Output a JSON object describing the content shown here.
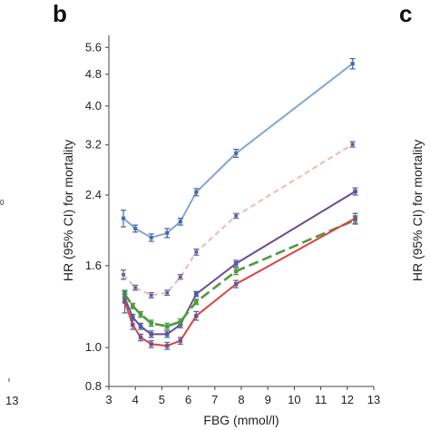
{
  "panels": {
    "center_letter": "b",
    "right_letter": "c",
    "left_x_tick": "13",
    "left_y_tick": "0"
  },
  "chart_data": {
    "type": "line",
    "title": "",
    "xlabel": "FBG (mmol/l)",
    "ylabel": "HR (95% CI) for mortality",
    "right_ylabel": "HR (95% CI) for mortality",
    "y_scale": "log",
    "xlim": [
      3,
      13
    ],
    "ylim": [
      0.8,
      6.0
    ],
    "x_ticks": [
      "3",
      "4",
      "5",
      "6",
      "7",
      "8",
      "9",
      "10",
      "11",
      "12",
      "13"
    ],
    "y_ticks": [
      "0.8",
      "1.0",
      "1.6",
      "2.4",
      "3.2",
      "4.0",
      "4.8",
      "5.6"
    ],
    "grid": false,
    "series": [
      {
        "color": "#7fa7d4",
        "marker_color": "#4a5fa8",
        "dash": "solid",
        "x": [
          3.55,
          4.0,
          4.6,
          5.2,
          5.7,
          6.3,
          7.8,
          12.2
        ],
        "y": [
          2.1,
          1.98,
          1.88,
          1.93,
          2.06,
          2.44,
          3.05,
          5.1
        ],
        "err": [
          0.1,
          0.04,
          0.04,
          0.05,
          0.04,
          0.05,
          0.07,
          0.15
        ]
      },
      {
        "color": "#f0b8b0",
        "marker_color": "#4a5fa8",
        "dash": "dashed",
        "x": [
          3.55,
          4.0,
          4.6,
          5.2,
          5.7,
          6.3,
          7.8,
          12.2
        ],
        "y": [
          1.52,
          1.41,
          1.35,
          1.37,
          1.5,
          1.73,
          2.13,
          3.21
        ],
        "err": [
          0.04,
          0.02,
          0.02,
          0.02,
          0.02,
          0.03,
          0.03,
          0.05
        ]
      },
      {
        "color": "#6a4c93",
        "marker_color": "#4a5fa8",
        "dash": "solid",
        "x": [
          3.6,
          3.9,
          4.2,
          4.6,
          5.2,
          5.7,
          6.3,
          7.8,
          12.3
        ],
        "y": [
          1.33,
          1.19,
          1.13,
          1.08,
          1.08,
          1.14,
          1.36,
          1.62,
          2.45
        ],
        "err": [
          0.03,
          0.02,
          0.02,
          0.02,
          0.02,
          0.02,
          0.02,
          0.03,
          0.05
        ]
      },
      {
        "color": "#4f9a3e",
        "marker_color": "#4f9a3e",
        "dash": "longdash",
        "x": [
          3.6,
          3.9,
          4.2,
          4.6,
          5.2,
          5.7,
          6.3,
          7.8,
          12.3
        ],
        "y": [
          1.36,
          1.27,
          1.21,
          1.15,
          1.13,
          1.16,
          1.3,
          1.55,
          2.08
        ],
        "err": [
          0.03,
          0.02,
          0.02,
          0.02,
          0.02,
          0.02,
          0.02,
          0.03,
          0.05
        ]
      },
      {
        "color": "#d94441",
        "marker_color": "#4a5fa8",
        "dash": "solid",
        "x": [
          3.6,
          3.9,
          4.2,
          4.6,
          5.2,
          5.7,
          6.3,
          7.8,
          12.3
        ],
        "y": [
          1.3,
          1.14,
          1.06,
          1.02,
          1.01,
          1.04,
          1.2,
          1.44,
          2.1
        ],
        "err": [
          0.08,
          0.03,
          0.02,
          0.02,
          0.02,
          0.02,
          0.03,
          0.03,
          0.06
        ]
      }
    ]
  }
}
